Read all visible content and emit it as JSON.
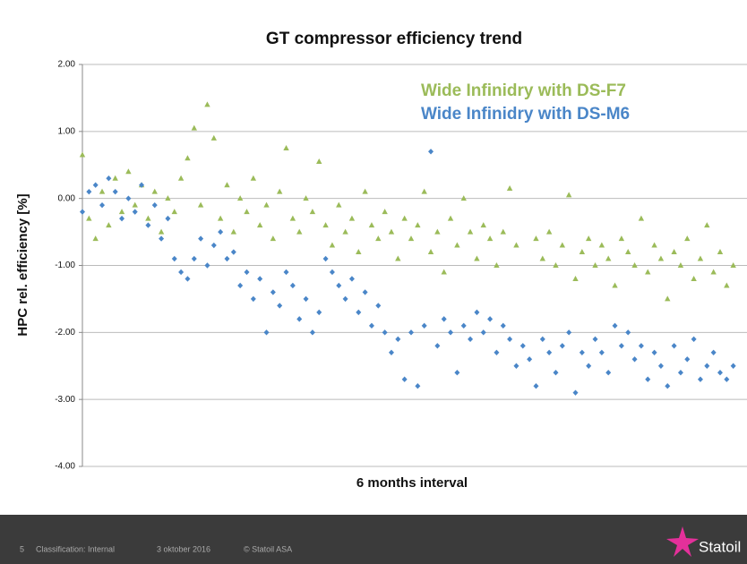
{
  "chart_data": {
    "type": "scatter",
    "title": "GT compressor efficiency trend",
    "ylabel": "HPC rel. efficiency [%]",
    "xlabel": "6 months interval",
    "ylim": [
      -4,
      2
    ],
    "yticks": [
      {
        "value": -4,
        "label": "-4.00"
      },
      {
        "value": -3,
        "label": "-3.00"
      },
      {
        "value": -2,
        "label": "-2.00"
      },
      {
        "value": -1,
        "label": "-1.00"
      },
      {
        "value": 0,
        "label": "0.00"
      },
      {
        "value": 1,
        "label": "1.00"
      },
      {
        "value": 2,
        "label": "2.00"
      }
    ],
    "xlim": [
      0,
      100
    ],
    "grid": true,
    "legend": "upper right",
    "series": [
      {
        "name": "Wide Infinidry with DS-F7",
        "color": "#9bbb59",
        "marker": "triangle",
        "x": [
          0,
          1,
          2,
          3,
          4,
          5,
          6,
          7,
          8,
          9,
          10,
          11,
          12,
          13,
          14,
          15,
          16,
          17,
          18,
          19,
          20,
          21,
          22,
          23,
          24,
          25,
          26,
          27,
          28,
          29,
          30,
          31,
          32,
          33,
          34,
          35,
          36,
          37,
          38,
          39,
          40,
          41,
          42,
          43,
          44,
          45,
          46,
          47,
          48,
          49,
          50,
          51,
          52,
          53,
          54,
          55,
          56,
          57,
          58,
          59,
          60,
          61,
          62,
          63,
          64,
          65,
          66,
          69,
          70,
          71,
          72,
          73,
          74,
          75,
          76,
          77,
          78,
          79,
          80,
          81,
          82,
          83,
          84,
          85,
          86,
          87,
          88,
          89,
          90,
          91,
          92,
          93,
          94,
          95,
          96,
          97,
          98,
          99
        ],
        "values": [
          0.65,
          -0.3,
          -0.6,
          0.1,
          -0.4,
          0.3,
          -0.2,
          0.4,
          -0.1,
          0.2,
          -0.3,
          0.1,
          -0.5,
          0.0,
          -0.2,
          0.3,
          0.6,
          1.05,
          -0.1,
          1.4,
          0.9,
          -0.3,
          0.2,
          -0.5,
          0.0,
          -0.2,
          0.3,
          -0.4,
          -0.1,
          -0.6,
          0.1,
          0.75,
          -0.3,
          -0.5,
          0.0,
          -0.2,
          0.55,
          -0.4,
          -0.7,
          -0.1,
          -0.5,
          -0.3,
          -0.8,
          0.1,
          -0.4,
          -0.6,
          -0.2,
          -0.5,
          -0.9,
          -0.3,
          -0.6,
          -0.4,
          0.1,
          -0.8,
          -0.5,
          -1.1,
          -0.3,
          -0.7,
          0.0,
          -0.5,
          -0.9,
          -0.4,
          -0.6,
          -1.0,
          -0.5,
          0.15,
          -0.7,
          -0.6,
          -0.9,
          -0.5,
          -1.0,
          -0.7,
          0.05,
          -1.2,
          -0.8,
          -0.6,
          -1.0,
          -0.7,
          -0.9,
          -1.3,
          -0.6,
          -0.8,
          -1.0,
          -0.3,
          -1.1,
          -0.7,
          -0.9,
          -1.5,
          -0.8,
          -1.0,
          -0.6,
          -1.2,
          -0.9,
          -0.4,
          -1.1,
          -0.8,
          -1.3,
          -1.0
        ]
      },
      {
        "name": "Wide Infinidry with DS-M6",
        "color": "#4a86c8",
        "marker": "diamond",
        "x": [
          0,
          1,
          2,
          3,
          4,
          5,
          6,
          7,
          8,
          9,
          10,
          11,
          12,
          13,
          14,
          15,
          16,
          17,
          18,
          19,
          20,
          21,
          22,
          23,
          24,
          25,
          26,
          27,
          28,
          29,
          30,
          31,
          32,
          33,
          34,
          35,
          36,
          37,
          38,
          39,
          40,
          41,
          42,
          43,
          44,
          45,
          46,
          47,
          48,
          49,
          50,
          51,
          52,
          53,
          54,
          55,
          56,
          57,
          58,
          59,
          60,
          61,
          62,
          63,
          64,
          65,
          66,
          67,
          68,
          69,
          70,
          71,
          72,
          73,
          74,
          75,
          76,
          77,
          78,
          79,
          80,
          81,
          82,
          83,
          84,
          85,
          86,
          87,
          88,
          89,
          90,
          91,
          92,
          93,
          94,
          95,
          96,
          97,
          98,
          99
        ],
        "values": [
          -0.2,
          0.1,
          0.2,
          -0.1,
          0.3,
          0.1,
          -0.3,
          0.0,
          -0.2,
          0.2,
          -0.4,
          -0.1,
          -0.6,
          -0.3,
          -0.9,
          -1.1,
          -1.2,
          -0.9,
          -0.6,
          -1.0,
          -0.7,
          -0.5,
          -0.9,
          -0.8,
          -1.3,
          -1.1,
          -1.5,
          -1.2,
          -2.0,
          -1.4,
          -1.6,
          -1.1,
          -1.3,
          -1.8,
          -1.5,
          -2.0,
          -1.7,
          -0.9,
          -1.1,
          -1.3,
          -1.5,
          -1.2,
          -1.7,
          -1.4,
          -1.9,
          -1.6,
          -2.0,
          -2.3,
          -2.1,
          -2.7,
          -2.0,
          -2.8,
          -1.9,
          0.7,
          -2.2,
          -1.8,
          -2.0,
          -2.6,
          -1.9,
          -2.1,
          -1.7,
          -2.0,
          -1.8,
          -2.3,
          -1.9,
          -2.1,
          -2.5,
          -2.2,
          -2.4,
          -2.8,
          -2.1,
          -2.3,
          -2.6,
          -2.2,
          -2.0,
          -2.9,
          -2.3,
          -2.5,
          -2.1,
          -2.3,
          -2.6,
          -1.9,
          -2.2,
          -2.0,
          -2.4,
          -2.2,
          -2.7,
          -2.3,
          -2.5,
          -2.8,
          -2.2,
          -2.6,
          -2.4,
          -2.1,
          -2.7,
          -2.5,
          -2.3,
          -2.6,
          -2.7,
          -2.5
        ]
      }
    ]
  },
  "footer": {
    "page": "5",
    "classification": "Classification: Internal",
    "date": "3 oktober 2016",
    "copyright": "© Statoil ASA",
    "logo": "Statoil"
  }
}
